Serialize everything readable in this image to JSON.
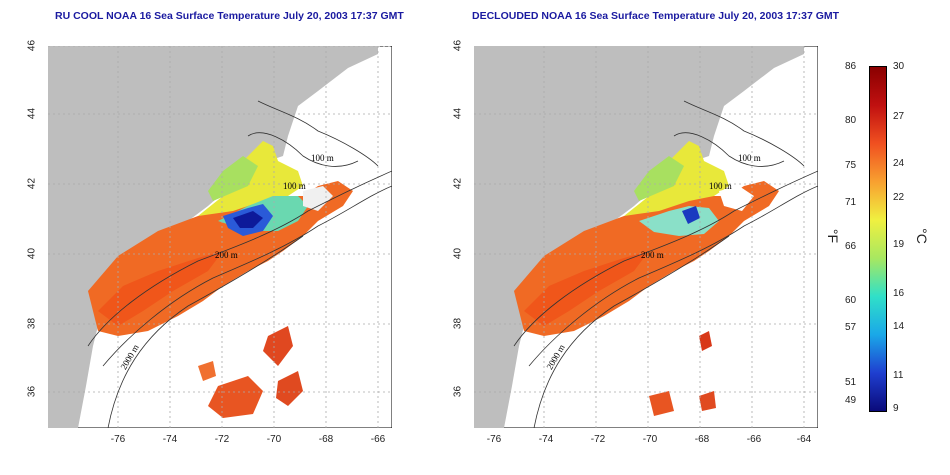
{
  "panels": [
    {
      "title": "RU COOL NOAA 16 Sea Surface Temperature July 20, 2003 17:37 GMT",
      "variant": "rucool"
    },
    {
      "title": "DECLOUDED NOAA 16 Sea Surface Temperature July 20, 2003 17:37 GMT",
      "variant": "declouded"
    }
  ],
  "axes": {
    "lat_ticks": [
      "46",
      "44",
      "42",
      "40",
      "38",
      "36"
    ],
    "lon_ticks": [
      "-76",
      "-74",
      "-72",
      "-70",
      "-68",
      "-66",
      "-64"
    ]
  },
  "contour_labels": [
    "100 m",
    "100 m",
    "200 m",
    "2000 m"
  ],
  "colorbar": {
    "f_unit": "°F",
    "c_unit": "°C",
    "f_ticks": [
      "86",
      "80",
      "75",
      "71",
      "66",
      "60",
      "57",
      "51",
      "49"
    ],
    "c_ticks": [
      "30",
      "27",
      "24",
      "22",
      "19",
      "16",
      "14",
      "11",
      "9"
    ],
    "colors": [
      "#0a0a7a",
      "#1f3fd0",
      "#1aa8e8",
      "#30e0c8",
      "#a8e860",
      "#f0f040",
      "#f8a030",
      "#f05020",
      "#c01010",
      "#8a0000"
    ]
  }
}
